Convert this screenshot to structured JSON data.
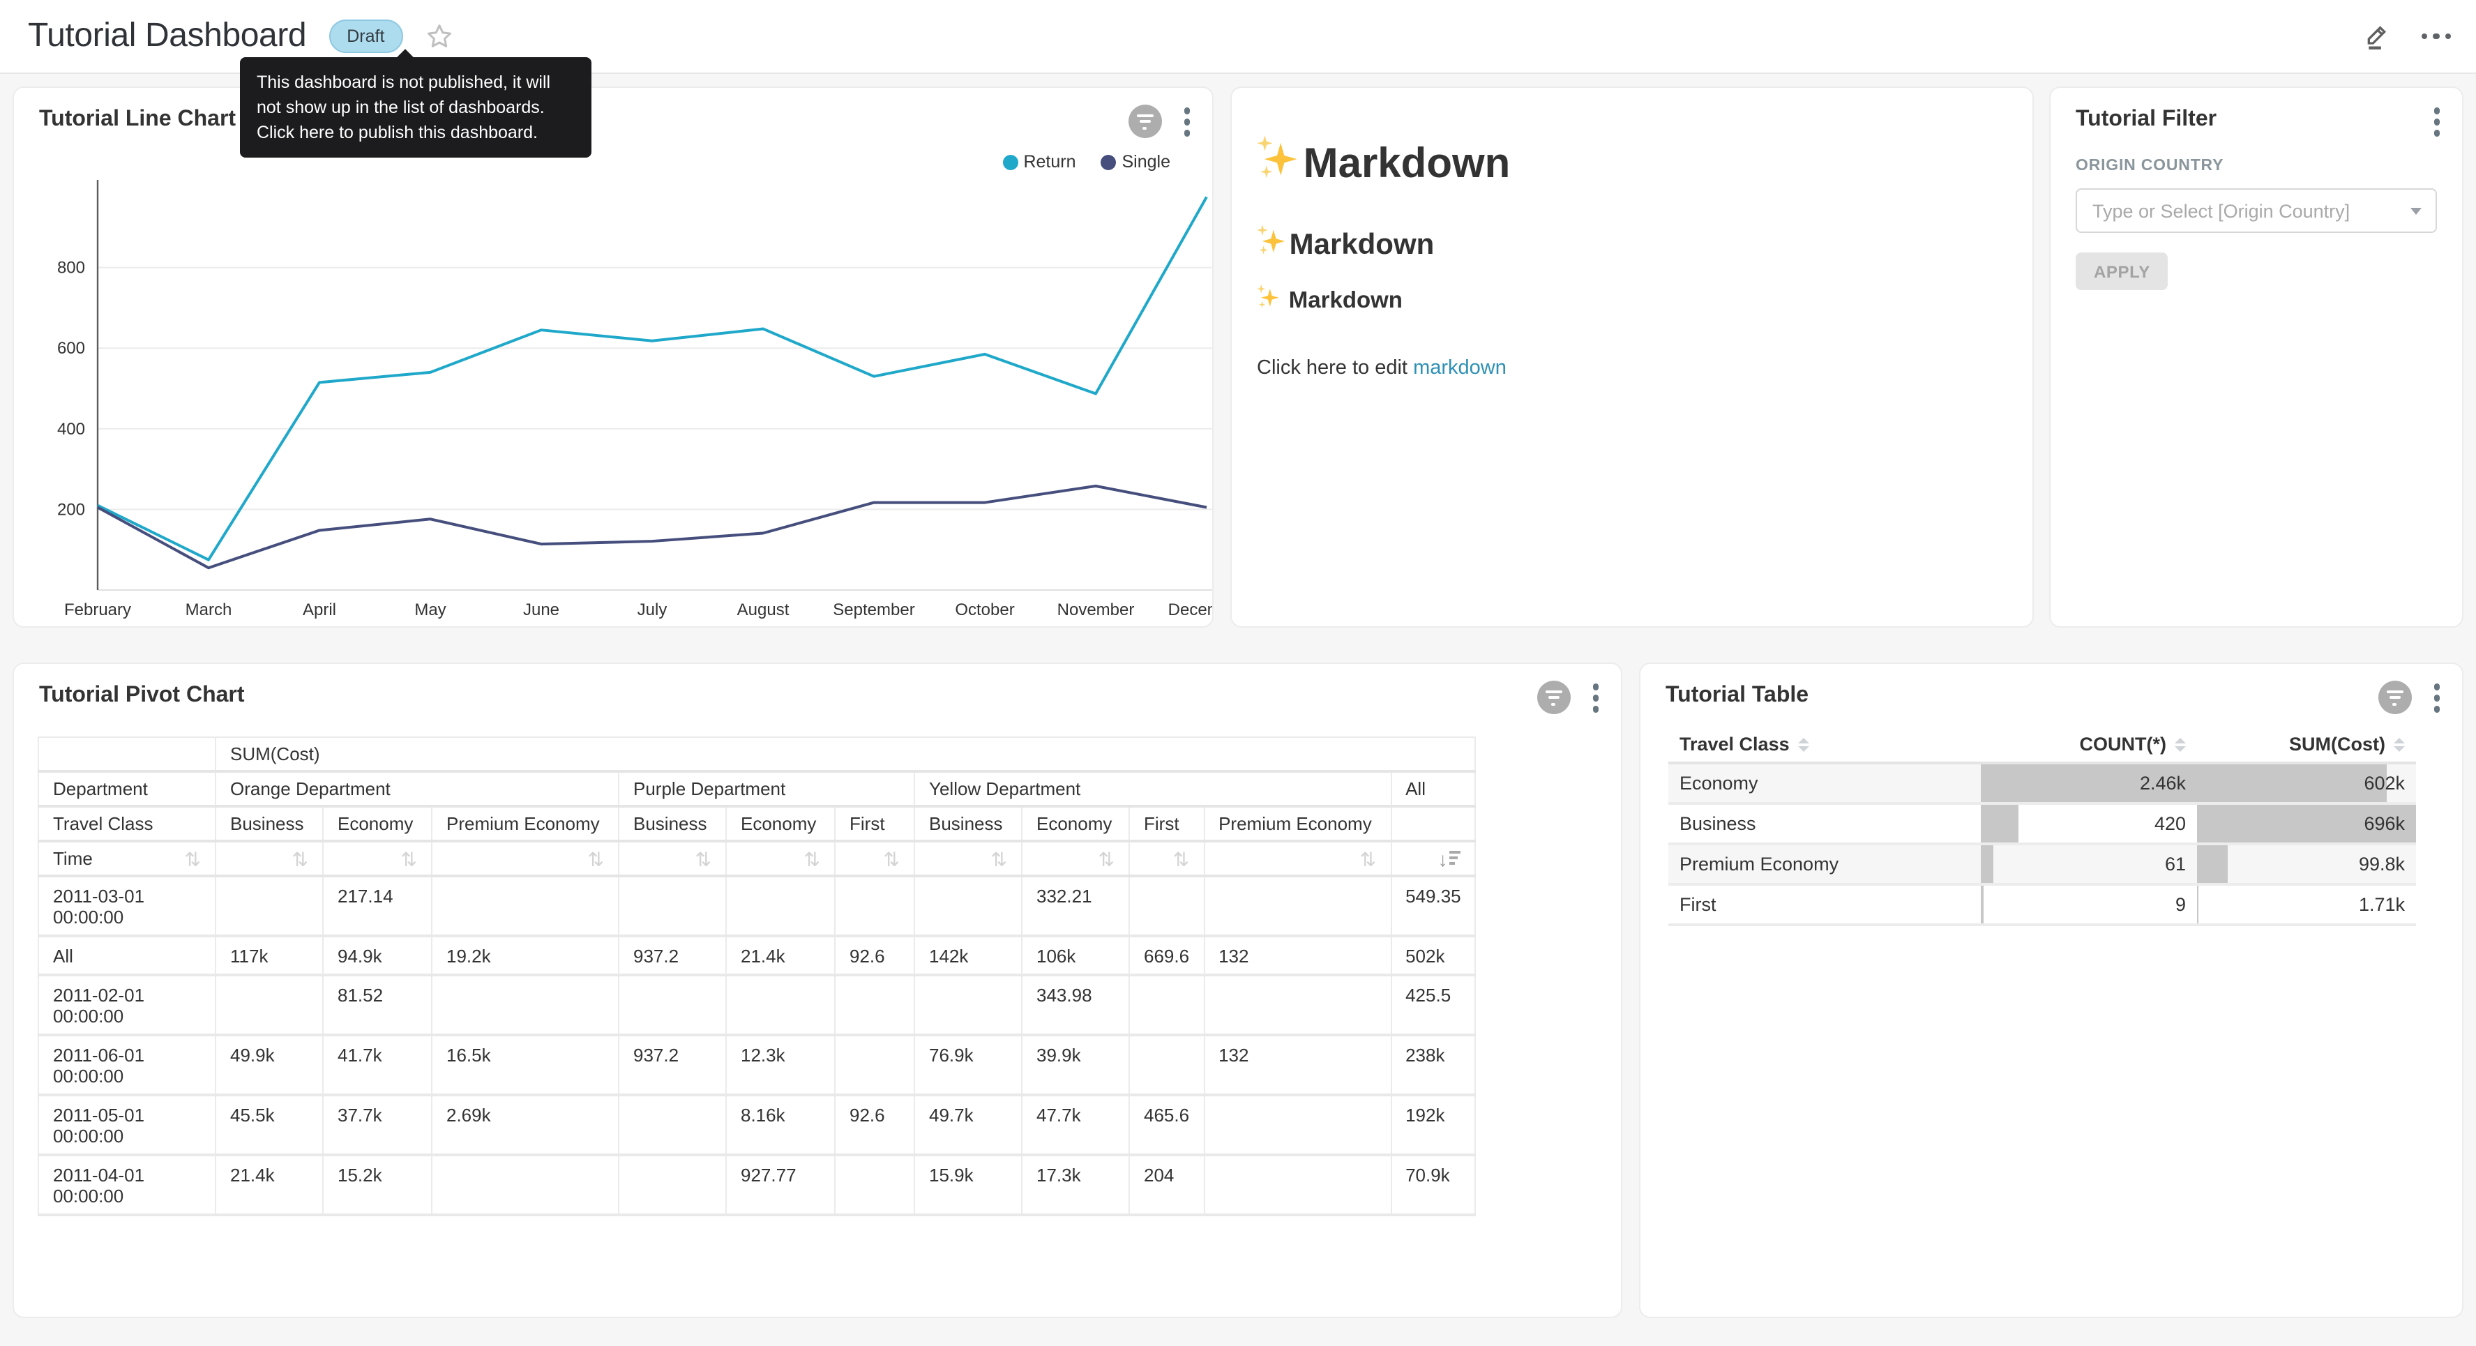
{
  "header": {
    "title": "Tutorial Dashboard",
    "status_badge": "Draft",
    "icons": [
      "favorite-star",
      "edit-pencil",
      "more-ellipsis"
    ]
  },
  "tooltip": {
    "text": "This dashboard is not published, it will not show up in the list of dashboards. Click here to publish this dashboard."
  },
  "cards": {
    "line": {
      "title": "Tutorial Line Chart"
    },
    "markdown": {
      "h1": "Markdown",
      "h2": "Markdown",
      "h3": "Markdown",
      "footer_text": "Click here to edit ",
      "footer_link": "markdown"
    },
    "filter": {
      "title": "Tutorial Filter",
      "field_label": "ORIGIN COUNTRY",
      "select_placeholder": "Type or Select [Origin Country]",
      "apply_label": "APPLY"
    },
    "pivot": {
      "title": "Tutorial Pivot Chart"
    },
    "table": {
      "title": "Tutorial Table"
    }
  },
  "chart_data": [
    {
      "type": "line",
      "title": "Tutorial Line Chart",
      "categories": [
        "February",
        "March",
        "April",
        "May",
        "June",
        "July",
        "August",
        "September",
        "October",
        "November",
        "December"
      ],
      "series": [
        {
          "name": "Return",
          "color": "#1FA8C9",
          "values": [
            210,
            75,
            515,
            540,
            645,
            618,
            648,
            530,
            585,
            487,
            975
          ]
        },
        {
          "name": "Single",
          "color": "#454E7C",
          "values": [
            205,
            55,
            148,
            176,
            114,
            121,
            141,
            217,
            217,
            258,
            205
          ]
        }
      ],
      "ylim": [
        0,
        1000
      ],
      "yticks": [
        200,
        400,
        600,
        800
      ],
      "grid": true,
      "legend_position": "top-right"
    },
    {
      "type": "table",
      "title": "Tutorial Pivot Chart",
      "metric_header": "SUM(Cost)",
      "columns": {
        "dept_dim_label": "Department",
        "class_dim_label": "Travel Class",
        "row_dim_label": "Time",
        "groups": [
          {
            "department": "Orange Department",
            "classes": [
              "Business",
              "Economy",
              "Premium Economy"
            ]
          },
          {
            "department": "Purple Department",
            "classes": [
              "Business",
              "Economy",
              "First"
            ]
          },
          {
            "department": "Yellow Department",
            "classes": [
              "Business",
              "Economy",
              "First",
              "Premium Economy"
            ]
          },
          {
            "department": "All",
            "classes": [
              ""
            ]
          }
        ]
      },
      "rows": [
        {
          "time": "2011-03-01 00:00:00",
          "values": [
            "",
            "217.14",
            "",
            "",
            "",
            "",
            "",
            "332.21",
            "",
            "",
            "549.35"
          ]
        },
        {
          "time": "All",
          "values": [
            "117k",
            "94.9k",
            "19.2k",
            "937.2",
            "21.4k",
            "92.6",
            "142k",
            "106k",
            "669.6",
            "132",
            "502k"
          ]
        },
        {
          "time": "2011-02-01 00:00:00",
          "values": [
            "",
            "81.52",
            "",
            "",
            "",
            "",
            "",
            "343.98",
            "",
            "",
            "425.5"
          ]
        },
        {
          "time": "2011-06-01 00:00:00",
          "values": [
            "49.9k",
            "41.7k",
            "16.5k",
            "937.2",
            "12.3k",
            "",
            "76.9k",
            "39.9k",
            "",
            "132",
            "238k"
          ]
        },
        {
          "time": "2011-05-01 00:00:00",
          "values": [
            "45.5k",
            "37.7k",
            "2.69k",
            "",
            "8.16k",
            "92.6",
            "49.7k",
            "47.7k",
            "465.6",
            "",
            "192k"
          ]
        },
        {
          "time": "2011-04-01 00:00:00",
          "values": [
            "21.4k",
            "15.2k",
            "",
            "",
            "927.77",
            "",
            "15.9k",
            "17.3k",
            "204",
            "",
            "70.9k"
          ]
        }
      ],
      "sorted_column": "All",
      "sort_direction": "desc"
    },
    {
      "type": "table",
      "title": "Tutorial Table",
      "columns": [
        "Travel Class",
        "COUNT(*)",
        "SUM(Cost)"
      ],
      "rows": [
        {
          "travel_class": "Economy",
          "count": "2.46k",
          "sum_cost": "602k",
          "count_bar": 1.0,
          "sum_bar": 0.865
        },
        {
          "travel_class": "Business",
          "count": "420",
          "sum_cost": "696k",
          "count_bar": 0.171,
          "sum_bar": 1.0
        },
        {
          "travel_class": "Premium Economy",
          "count": "61",
          "sum_cost": "99.8k",
          "count_bar": 0.06,
          "sum_bar": 0.143
        },
        {
          "travel_class": "First",
          "count": "9",
          "sum_cost": "1.71k",
          "count_bar": 0.012,
          "sum_bar": 0.006
        }
      ]
    }
  ],
  "colors": {
    "accent_teal": "#1FA8C9",
    "accent_navy": "#454E7C",
    "draft_badge_bg": "#AEDCEF",
    "bar_gray": "#C7C7C7",
    "tooltip_bg": "#1C1C1E",
    "link": "#2D90B5"
  }
}
